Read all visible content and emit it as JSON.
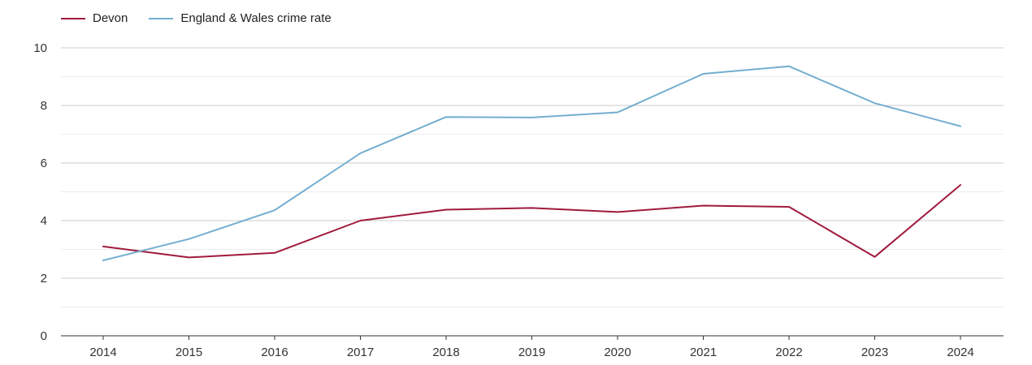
{
  "chart_data": {
    "type": "line",
    "title": "",
    "xlabel": "",
    "ylabel": "",
    "x": [
      "2014",
      "2015",
      "2016",
      "2017",
      "2018",
      "2019",
      "2020",
      "2021",
      "2022",
      "2023",
      "2024"
    ],
    "ylim": [
      0,
      10
    ],
    "yticks": [
      0,
      2,
      4,
      6,
      8,
      10
    ],
    "grid": true,
    "legend_position": "top-left",
    "series": [
      {
        "name": "Devon",
        "color": "#a01a3c",
        "values": [
          3.1,
          2.72,
          2.88,
          4.0,
          4.38,
          4.44,
          4.3,
          4.52,
          4.48,
          2.74,
          5.24
        ]
      },
      {
        "name": "England & Wales crime rate",
        "color": "#74aed0",
        "values": [
          2.62,
          3.36,
          4.36,
          6.34,
          7.6,
          7.58,
          7.76,
          9.1,
          9.36,
          8.08,
          7.28
        ]
      }
    ]
  }
}
